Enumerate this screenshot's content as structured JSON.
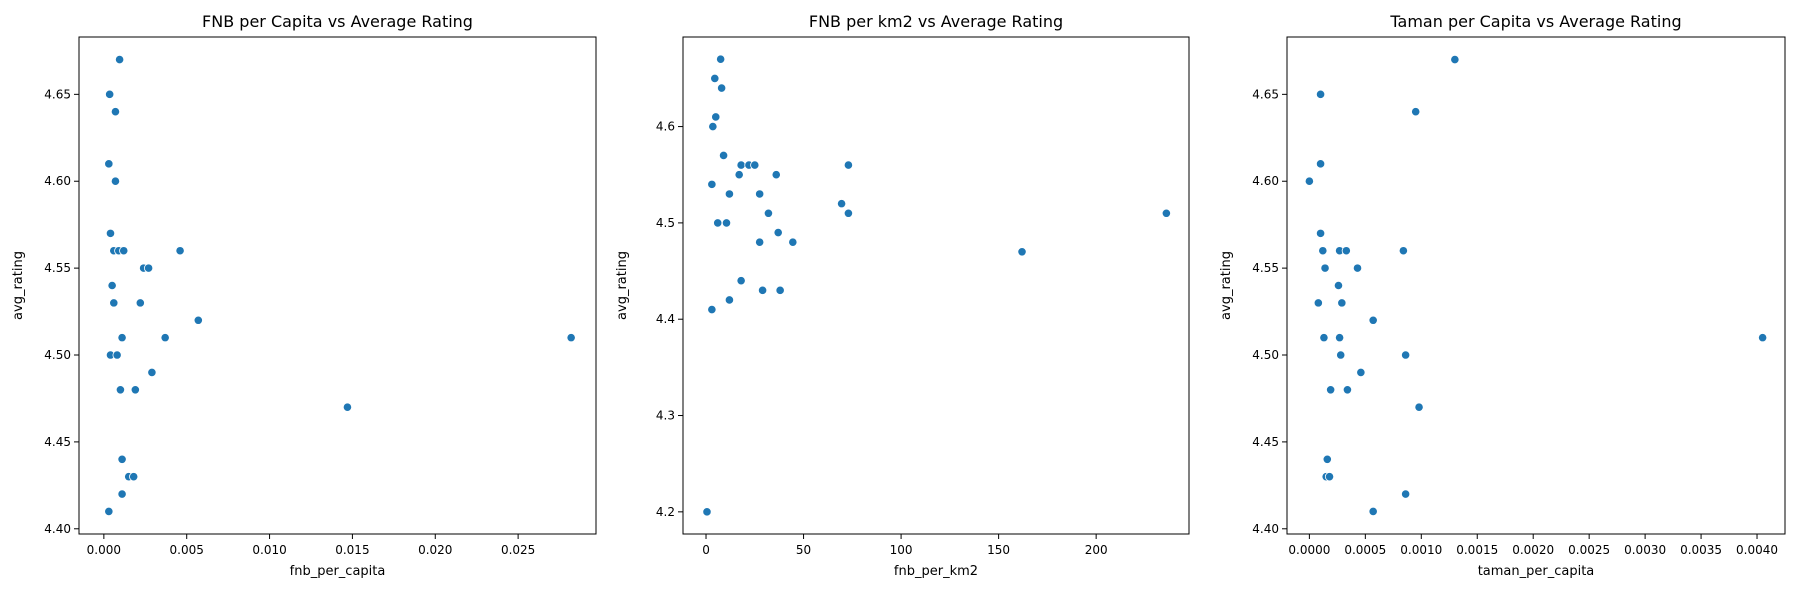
{
  "chart_data": [
    {
      "type": "scatter",
      "title": "FNB per Capita vs Average Rating",
      "xlabel": "fnb_per_capita",
      "ylabel": "avg_rating",
      "xlim": [
        -0.0015,
        0.0297
      ],
      "ylim": [
        4.397,
        4.683
      ],
      "xticks": [
        0.0,
        0.005,
        0.01,
        0.015,
        0.02,
        0.025
      ],
      "xtick_labels": [
        "0.000",
        "0.005",
        "0.010",
        "0.015",
        "0.020",
        "0.025"
      ],
      "yticks": [
        4.4,
        4.45,
        4.5,
        4.55,
        4.6,
        4.65
      ],
      "ytick_labels": [
        "4.40",
        "4.45",
        "4.50",
        "4.55",
        "4.60",
        "4.65"
      ],
      "color": "#1f77b4",
      "points": [
        {
          "x": 0.00095,
          "y": 4.67
        },
        {
          "x": 0.00035,
          "y": 4.65
        },
        {
          "x": 0.0007,
          "y": 4.64
        },
        {
          "x": 0.0003,
          "y": 4.61
        },
        {
          "x": 0.0007,
          "y": 4.6
        },
        {
          "x": 0.0004,
          "y": 4.57
        },
        {
          "x": 0.0006,
          "y": 4.56
        },
        {
          "x": 0.0009,
          "y": 4.56
        },
        {
          "x": 0.0012,
          "y": 4.56
        },
        {
          "x": 0.0046,
          "y": 4.56
        },
        {
          "x": 0.0024,
          "y": 4.55
        },
        {
          "x": 0.0027,
          "y": 4.55
        },
        {
          "x": 0.0005,
          "y": 4.54
        },
        {
          "x": 0.0006,
          "y": 4.53
        },
        {
          "x": 0.0022,
          "y": 4.53
        },
        {
          "x": 0.0057,
          "y": 4.52
        },
        {
          "x": 0.0011,
          "y": 4.51
        },
        {
          "x": 0.0037,
          "y": 4.51
        },
        {
          "x": 0.0282,
          "y": 4.51
        },
        {
          "x": 0.0004,
          "y": 4.5
        },
        {
          "x": 0.0008,
          "y": 4.5
        },
        {
          "x": 0.0029,
          "y": 4.49
        },
        {
          "x": 0.001,
          "y": 4.48
        },
        {
          "x": 0.0019,
          "y": 4.48
        },
        {
          "x": 0.0147,
          "y": 4.47
        },
        {
          "x": 0.0011,
          "y": 4.44
        },
        {
          "x": 0.0015,
          "y": 4.43
        },
        {
          "x": 0.0018,
          "y": 4.43
        },
        {
          "x": 0.0011,
          "y": 4.42
        },
        {
          "x": 0.0003,
          "y": 4.41
        }
      ]
    },
    {
      "type": "scatter",
      "title": "FNB per km2 vs Average Rating",
      "xlabel": "fnb_per_km2",
      "ylabel": "avg_rating",
      "xlim": [
        -11.8,
        247.6
      ],
      "ylim": [
        4.177,
        4.693
      ],
      "xticks": [
        0,
        50,
        100,
        150,
        200
      ],
      "xtick_labels": [
        "0",
        "50",
        "100",
        "150",
        "200"
      ],
      "yticks": [
        4.2,
        4.3,
        4.4,
        4.5,
        4.6
      ],
      "ytick_labels": [
        "4.2",
        "4.3",
        "4.4",
        "4.5",
        "4.6"
      ],
      "color": "#1f77b4",
      "points": [
        {
          "x": 7.5,
          "y": 4.67
        },
        {
          "x": 4.5,
          "y": 4.65
        },
        {
          "x": 8,
          "y": 4.64
        },
        {
          "x": 5,
          "y": 4.61
        },
        {
          "x": 3.5,
          "y": 4.6
        },
        {
          "x": 9,
          "y": 4.57
        },
        {
          "x": 18,
          "y": 4.56
        },
        {
          "x": 22,
          "y": 4.56
        },
        {
          "x": 25,
          "y": 4.56
        },
        {
          "x": 73,
          "y": 4.56
        },
        {
          "x": 17,
          "y": 4.55
        },
        {
          "x": 36,
          "y": 4.55
        },
        {
          "x": 3,
          "y": 4.54
        },
        {
          "x": 12,
          "y": 4.53
        },
        {
          "x": 27.5,
          "y": 4.53
        },
        {
          "x": 69.5,
          "y": 4.52
        },
        {
          "x": 32,
          "y": 4.51
        },
        {
          "x": 73,
          "y": 4.51
        },
        {
          "x": 236,
          "y": 4.51
        },
        {
          "x": 6,
          "y": 4.5
        },
        {
          "x": 10.5,
          "y": 4.5
        },
        {
          "x": 37,
          "y": 4.49
        },
        {
          "x": 27.5,
          "y": 4.48
        },
        {
          "x": 44.5,
          "y": 4.48
        },
        {
          "x": 162,
          "y": 4.47
        },
        {
          "x": 18,
          "y": 4.44
        },
        {
          "x": 29,
          "y": 4.43
        },
        {
          "x": 38,
          "y": 4.43
        },
        {
          "x": 12,
          "y": 4.42
        },
        {
          "x": 3,
          "y": 4.41
        },
        {
          "x": 0.5,
          "y": 4.2
        }
      ]
    },
    {
      "type": "scatter",
      "title": "Taman per Capita vs Average Rating",
      "xlabel": "taman_per_capita",
      "ylabel": "avg_rating",
      "xlim": [
        -0.0002,
        0.00425
      ],
      "ylim": [
        4.397,
        4.683
      ],
      "xticks": [
        0.0,
        0.0005,
        0.001,
        0.0015,
        0.002,
        0.0025,
        0.003,
        0.0035,
        0.004
      ],
      "xtick_labels": [
        "0.0000",
        "0.0005",
        "0.0010",
        "0.0015",
        "0.0020",
        "0.0025",
        "0.0030",
        "0.0035",
        "0.0040"
      ],
      "yticks": [
        4.4,
        4.45,
        4.5,
        4.55,
        4.6,
        4.65
      ],
      "ytick_labels": [
        "4.40",
        "4.45",
        "4.50",
        "4.55",
        "4.60",
        "4.65"
      ],
      "color": "#1f77b4",
      "points": [
        {
          "x": 0.0013,
          "y": 4.67
        },
        {
          "x": 0.0001,
          "y": 4.65
        },
        {
          "x": 0.00095,
          "y": 4.64
        },
        {
          "x": 0.0001,
          "y": 4.61
        },
        {
          "x": 0.0,
          "y": 4.6
        },
        {
          "x": 0.0001,
          "y": 4.57
        },
        {
          "x": 0.00012,
          "y": 4.56
        },
        {
          "x": 0.00027,
          "y": 4.56
        },
        {
          "x": 0.00033,
          "y": 4.56
        },
        {
          "x": 0.00084,
          "y": 4.56
        },
        {
          "x": 0.00014,
          "y": 4.55
        },
        {
          "x": 0.00043,
          "y": 4.55
        },
        {
          "x": 0.00026,
          "y": 4.54
        },
        {
          "x": 8e-05,
          "y": 4.53
        },
        {
          "x": 0.00029,
          "y": 4.53
        },
        {
          "x": 0.00057,
          "y": 4.52
        },
        {
          "x": 0.00013,
          "y": 4.51
        },
        {
          "x": 0.00027,
          "y": 4.51
        },
        {
          "x": 0.00405,
          "y": 4.51
        },
        {
          "x": 0.00028,
          "y": 4.5
        },
        {
          "x": 0.00086,
          "y": 4.5
        },
        {
          "x": 0.00046,
          "y": 4.49
        },
        {
          "x": 0.00019,
          "y": 4.48
        },
        {
          "x": 0.00034,
          "y": 4.48
        },
        {
          "x": 0.00098,
          "y": 4.47
        },
        {
          "x": 0.00016,
          "y": 4.44
        },
        {
          "x": 0.00015,
          "y": 4.43
        },
        {
          "x": 0.00018,
          "y": 4.43
        },
        {
          "x": 0.00086,
          "y": 4.42
        },
        {
          "x": 0.00057,
          "y": 4.41
        }
      ]
    }
  ]
}
